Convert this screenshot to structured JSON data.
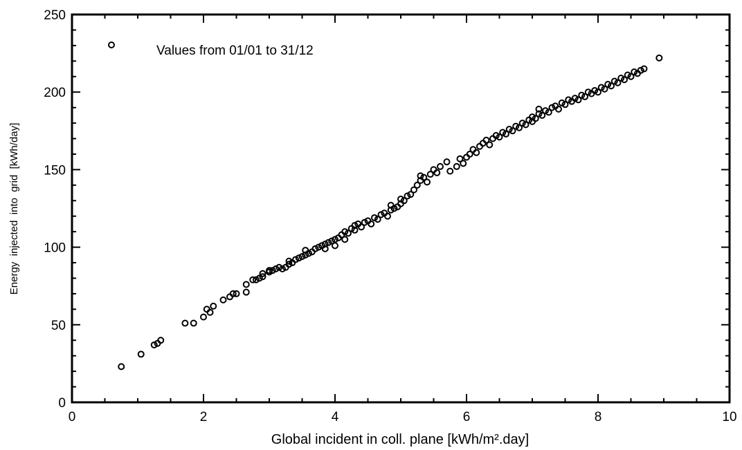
{
  "chart_data": {
    "type": "scatter",
    "title": "",
    "xlabel": "Global incident in coll. plane [kWh/m².day]",
    "ylabel": "Energy  injected  into  grid  [kWh/day]",
    "xlim": [
      0,
      10
    ],
    "ylim": [
      0,
      250
    ],
    "x_ticks": [
      0,
      2,
      4,
      6,
      8,
      10
    ],
    "y_ticks": [
      0,
      50,
      100,
      150,
      200,
      250
    ],
    "x_tick_labels": [
      "0",
      "2",
      "4",
      "6",
      "8",
      "10"
    ],
    "y_tick_labels": [
      "0",
      "50",
      "100",
      "150",
      "200",
      "250"
    ],
    "x_minor_step": 0.5,
    "y_minor_step": 10,
    "grid": false,
    "legend": {
      "label": "Values from 01/01 to 31/12",
      "position": "top-left",
      "marker": "open-circle"
    },
    "marker_color": "#000000",
    "series": [
      {
        "name": "Values from 01/01 to 31/12",
        "points": [
          [
            0.75,
            23
          ],
          [
            1.05,
            31
          ],
          [
            1.25,
            37
          ],
          [
            1.3,
            38
          ],
          [
            1.35,
            40
          ],
          [
            1.72,
            51
          ],
          [
            1.85,
            51
          ],
          [
            2.0,
            55
          ],
          [
            2.05,
            60
          ],
          [
            2.1,
            58
          ],
          [
            2.15,
            62
          ],
          [
            2.3,
            66
          ],
          [
            2.4,
            68
          ],
          [
            2.45,
            70
          ],
          [
            2.5,
            70
          ],
          [
            2.65,
            76
          ],
          [
            2.65,
            71
          ],
          [
            2.75,
            79
          ],
          [
            2.8,
            79
          ],
          [
            2.85,
            80
          ],
          [
            2.9,
            81
          ],
          [
            2.9,
            83
          ],
          [
            3.0,
            84
          ],
          [
            3.0,
            85
          ],
          [
            3.05,
            85
          ],
          [
            3.1,
            86
          ],
          [
            3.15,
            87
          ],
          [
            3.2,
            86
          ],
          [
            3.25,
            87
          ],
          [
            3.3,
            89
          ],
          [
            3.3,
            91
          ],
          [
            3.35,
            90
          ],
          [
            3.4,
            92
          ],
          [
            3.45,
            93
          ],
          [
            3.5,
            94
          ],
          [
            3.55,
            95
          ],
          [
            3.55,
            98
          ],
          [
            3.6,
            96
          ],
          [
            3.65,
            97
          ],
          [
            3.7,
            99
          ],
          [
            3.75,
            100
          ],
          [
            3.8,
            101
          ],
          [
            3.85,
            102
          ],
          [
            3.85,
            99
          ],
          [
            3.9,
            103
          ],
          [
            3.95,
            104
          ],
          [
            4.0,
            101
          ],
          [
            4.0,
            105
          ],
          [
            4.05,
            106
          ],
          [
            4.1,
            108
          ],
          [
            4.15,
            105
          ],
          [
            4.15,
            110
          ],
          [
            4.2,
            109
          ],
          [
            4.25,
            112
          ],
          [
            4.3,
            111
          ],
          [
            4.3,
            114
          ],
          [
            4.35,
            115
          ],
          [
            4.4,
            113
          ],
          [
            4.45,
            116
          ],
          [
            4.5,
            117
          ],
          [
            4.55,
            115
          ],
          [
            4.6,
            119
          ],
          [
            4.65,
            118
          ],
          [
            4.7,
            121
          ],
          [
            4.75,
            122
          ],
          [
            4.8,
            120
          ],
          [
            4.85,
            124
          ],
          [
            4.85,
            127
          ],
          [
            4.9,
            125
          ],
          [
            4.95,
            126
          ],
          [
            5.0,
            128
          ],
          [
            5.0,
            131
          ],
          [
            5.05,
            130
          ],
          [
            5.1,
            133
          ],
          [
            5.15,
            134
          ],
          [
            5.2,
            137
          ],
          [
            5.25,
            140
          ],
          [
            5.3,
            143
          ],
          [
            5.3,
            146
          ],
          [
            5.35,
            145
          ],
          [
            5.4,
            142
          ],
          [
            5.45,
            147
          ],
          [
            5.5,
            150
          ],
          [
            5.55,
            148
          ],
          [
            5.6,
            152
          ],
          [
            5.7,
            155
          ],
          [
            5.75,
            149
          ],
          [
            5.85,
            152
          ],
          [
            5.9,
            157
          ],
          [
            5.95,
            154
          ],
          [
            6.0,
            158
          ],
          [
            6.05,
            160
          ],
          [
            6.1,
            163
          ],
          [
            6.15,
            161
          ],
          [
            6.2,
            165
          ],
          [
            6.25,
            167
          ],
          [
            6.3,
            169
          ],
          [
            6.35,
            166
          ],
          [
            6.4,
            170
          ],
          [
            6.45,
            172
          ],
          [
            6.5,
            171
          ],
          [
            6.55,
            174
          ],
          [
            6.6,
            173
          ],
          [
            6.65,
            176
          ],
          [
            6.7,
            175
          ],
          [
            6.75,
            178
          ],
          [
            6.8,
            177
          ],
          [
            6.85,
            180
          ],
          [
            6.9,
            179
          ],
          [
            6.95,
            182
          ],
          [
            7.0,
            181
          ],
          [
            7.0,
            184
          ],
          [
            7.05,
            183
          ],
          [
            7.1,
            186
          ],
          [
            7.1,
            189
          ],
          [
            7.15,
            185
          ],
          [
            7.2,
            188
          ],
          [
            7.25,
            187
          ],
          [
            7.3,
            190
          ],
          [
            7.35,
            191
          ],
          [
            7.4,
            189
          ],
          [
            7.45,
            193
          ],
          [
            7.5,
            192
          ],
          [
            7.55,
            195
          ],
          [
            7.6,
            194
          ],
          [
            7.65,
            196
          ],
          [
            7.7,
            195
          ],
          [
            7.75,
            198
          ],
          [
            7.8,
            197
          ],
          [
            7.85,
            200
          ],
          [
            7.9,
            199
          ],
          [
            7.95,
            201
          ],
          [
            8.0,
            200
          ],
          [
            8.05,
            203
          ],
          [
            8.1,
            202
          ],
          [
            8.15,
            205
          ],
          [
            8.2,
            204
          ],
          [
            8.25,
            207
          ],
          [
            8.3,
            206
          ],
          [
            8.35,
            209
          ],
          [
            8.4,
            208
          ],
          [
            8.45,
            211
          ],
          [
            8.5,
            210
          ],
          [
            8.55,
            213
          ],
          [
            8.6,
            212
          ],
          [
            8.65,
            214
          ],
          [
            8.7,
            215
          ],
          [
            8.93,
            222
          ]
        ]
      }
    ]
  }
}
